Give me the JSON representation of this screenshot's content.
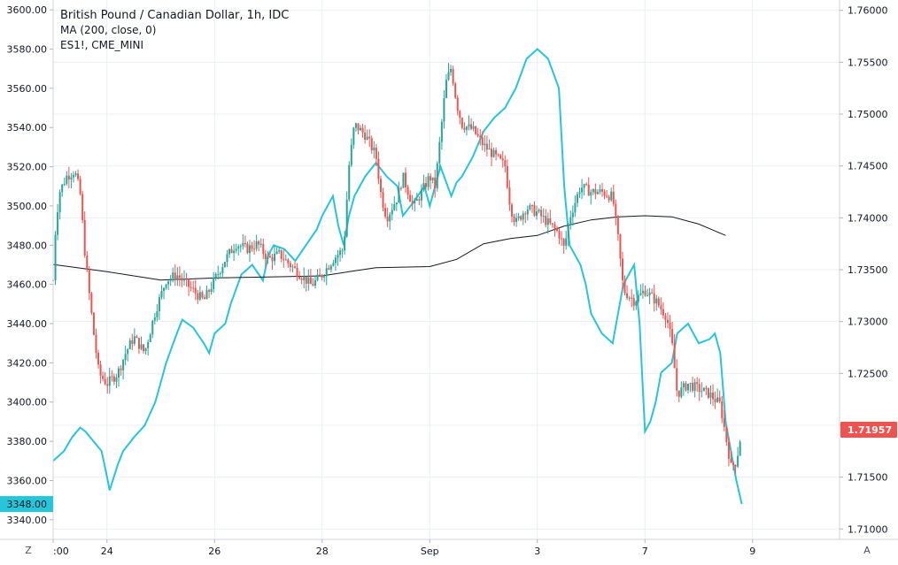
{
  "legend": {
    "title": "British Pound / Canadian Dollar, 1h, IDC",
    "ma": "MA (200, close, 0)",
    "compare": "ES1!, CME_MINI"
  },
  "buttons": {
    "zoom": "Z",
    "auto": "A"
  },
  "colors": {
    "bull": "#26a69a",
    "bear": "#ef5350",
    "compare_line": "#26c6da",
    "ma_line": "#131722",
    "grid": "#eceff3",
    "price_badge": "#ef5350",
    "compare_badge": "#26c6da"
  },
  "chart_data": {
    "type": "candlestick",
    "x_ticks": [
      {
        "label": ":00",
        "day": 0
      },
      {
        "label": "24",
        "day": 1
      },
      {
        "label": "26",
        "day": 3
      },
      {
        "label": "28",
        "day": 5
      },
      {
        "label": "Sep",
        "day": 7
      },
      {
        "label": "3",
        "day": 9
      },
      {
        "label": "7",
        "day": 11
      },
      {
        "label": "9",
        "day": 13
      }
    ],
    "right_axis": {
      "min": 1.709,
      "max": 1.761,
      "ticks": [
        "1.76000",
        "1.75500",
        "1.75000",
        "1.74500",
        "1.74000",
        "1.73500",
        "1.73000",
        "1.72500",
        "1.72000",
        "1.71500",
        "1.71000"
      ],
      "current_value": "1.71957"
    },
    "left_axis": {
      "min": 3330,
      "max": 3605,
      "ticks": [
        "3600.00",
        "3580.00",
        "3560.00",
        "3540.00",
        "3520.00",
        "3500.00",
        "3480.00",
        "3460.00",
        "3440.00",
        "3420.00",
        "3400.00",
        "3380.00",
        "3360.00",
        "3340.00"
      ],
      "current_value": "3348.00"
    },
    "price_path": [
      [
        0.0,
        1.734
      ],
      [
        0.05,
        1.7395
      ],
      [
        0.12,
        1.7425
      ],
      [
        0.25,
        1.744
      ],
      [
        0.4,
        1.7445
      ],
      [
        0.5,
        1.7425
      ],
      [
        0.6,
        1.736
      ],
      [
        0.75,
        1.729
      ],
      [
        0.85,
        1.725
      ],
      [
        1.0,
        1.724
      ],
      [
        1.2,
        1.725
      ],
      [
        1.35,
        1.727
      ],
      [
        1.5,
        1.7285
      ],
      [
        1.7,
        1.727
      ],
      [
        1.9,
        1.731
      ],
      [
        2.1,
        1.734
      ],
      [
        2.3,
        1.7345
      ],
      [
        2.6,
        1.733
      ],
      [
        2.8,
        1.732
      ],
      [
        3.0,
        1.734
      ],
      [
        3.2,
        1.736
      ],
      [
        3.4,
        1.7375
      ],
      [
        3.6,
        1.737
      ],
      [
        3.8,
        1.7375
      ],
      [
        4.0,
        1.736
      ],
      [
        4.2,
        1.7365
      ],
      [
        4.5,
        1.735
      ],
      [
        4.8,
        1.7335
      ],
      [
        5.0,
        1.7345
      ],
      [
        5.2,
        1.736
      ],
      [
        5.4,
        1.737
      ],
      [
        5.5,
        1.745
      ],
      [
        5.6,
        1.749
      ],
      [
        5.8,
        1.748
      ],
      [
        6.0,
        1.746
      ],
      [
        6.1,
        1.742
      ],
      [
        6.2,
        1.74
      ],
      [
        6.4,
        1.742
      ],
      [
        6.5,
        1.744
      ],
      [
        6.7,
        1.741
      ],
      [
        6.9,
        1.743
      ],
      [
        7.0,
        1.744
      ],
      [
        7.1,
        1.743
      ],
      [
        7.2,
        1.748
      ],
      [
        7.3,
        1.753
      ],
      [
        7.4,
        1.7545
      ],
      [
        7.5,
        1.751
      ],
      [
        7.6,
        1.749
      ],
      [
        7.8,
        1.7485
      ],
      [
        8.0,
        1.747
      ],
      [
        8.2,
        1.746
      ],
      [
        8.4,
        1.745
      ],
      [
        8.5,
        1.741
      ],
      [
        8.6,
        1.7395
      ],
      [
        8.8,
        1.741
      ],
      [
        9.0,
        1.7405
      ],
      [
        9.2,
        1.7395
      ],
      [
        9.4,
        1.7385
      ],
      [
        9.5,
        1.737
      ],
      [
        9.6,
        1.74
      ],
      [
        9.8,
        1.743
      ],
      [
        10.0,
        1.7425
      ],
      [
        10.2,
        1.7425
      ],
      [
        10.4,
        1.742
      ],
      [
        10.5,
        1.738
      ],
      [
        10.6,
        1.733
      ],
      [
        10.8,
        1.732
      ],
      [
        11.0,
        1.733
      ],
      [
        11.2,
        1.732
      ],
      [
        11.4,
        1.7305
      ],
      [
        11.5,
        1.728
      ],
      [
        11.6,
        1.723
      ],
      [
        11.8,
        1.724
      ],
      [
        12.0,
        1.7235
      ],
      [
        12.2,
        1.723
      ],
      [
        12.4,
        1.722
      ],
      [
        12.6,
        1.716
      ],
      [
        12.7,
        1.7165
      ],
      [
        12.8,
        1.7196
      ]
    ],
    "ma_line": [
      [
        0.0,
        1.7355
      ],
      [
        1.0,
        1.7348
      ],
      [
        2.0,
        1.734
      ],
      [
        3.0,
        1.7342
      ],
      [
        4.0,
        1.7343
      ],
      [
        5.0,
        1.7344
      ],
      [
        5.5,
        1.7348
      ],
      [
        6.0,
        1.7352
      ],
      [
        7.0,
        1.7353
      ],
      [
        7.5,
        1.736
      ],
      [
        8.0,
        1.7375
      ],
      [
        8.5,
        1.738
      ],
      [
        9.0,
        1.7383
      ],
      [
        9.5,
        1.7392
      ],
      [
        10.0,
        1.7398
      ],
      [
        10.5,
        1.7401
      ],
      [
        11.0,
        1.7402
      ],
      [
        11.5,
        1.7401
      ],
      [
        12.0,
        1.7394
      ],
      [
        12.5,
        1.7383
      ]
    ],
    "compare_series": [
      [
        0.0,
        3370
      ],
      [
        0.2,
        3375
      ],
      [
        0.35,
        3382
      ],
      [
        0.5,
        3387
      ],
      [
        0.6,
        3385
      ],
      [
        0.75,
        3380
      ],
      [
        0.9,
        3375
      ],
      [
        1.0,
        3362
      ],
      [
        1.05,
        3355
      ],
      [
        1.2,
        3368
      ],
      [
        1.3,
        3375
      ],
      [
        1.5,
        3382
      ],
      [
        1.7,
        3388
      ],
      [
        1.9,
        3400
      ],
      [
        2.1,
        3420
      ],
      [
        2.3,
        3435
      ],
      [
        2.4,
        3442
      ],
      [
        2.6,
        3438
      ],
      [
        2.8,
        3430
      ],
      [
        2.9,
        3425
      ],
      [
        3.0,
        3435
      ],
      [
        3.2,
        3440
      ],
      [
        3.3,
        3450
      ],
      [
        3.5,
        3465
      ],
      [
        3.7,
        3470
      ],
      [
        3.9,
        3462
      ],
      [
        4.0,
        3475
      ],
      [
        4.1,
        3480
      ],
      [
        4.3,
        3478
      ],
      [
        4.5,
        3472
      ],
      [
        4.7,
        3480
      ],
      [
        4.9,
        3488
      ],
      [
        5.0,
        3495
      ],
      [
        5.2,
        3505
      ],
      [
        5.3,
        3490
      ],
      [
        5.4,
        3480
      ],
      [
        5.5,
        3495
      ],
      [
        5.6,
        3505
      ],
      [
        5.8,
        3515
      ],
      [
        6.0,
        3522
      ],
      [
        6.2,
        3515
      ],
      [
        6.4,
        3510
      ],
      [
        6.5,
        3495
      ],
      [
        6.7,
        3502
      ],
      [
        6.9,
        3510
      ],
      [
        7.0,
        3500
      ],
      [
        7.2,
        3520
      ],
      [
        7.4,
        3505
      ],
      [
        7.5,
        3512
      ],
      [
        7.6,
        3515
      ],
      [
        7.8,
        3525
      ],
      [
        8.0,
        3538
      ],
      [
        8.2,
        3545
      ],
      [
        8.4,
        3550
      ],
      [
        8.6,
        3560
      ],
      [
        8.8,
        3575
      ],
      [
        9.0,
        3580
      ],
      [
        9.2,
        3575
      ],
      [
        9.4,
        3560
      ],
      [
        9.5,
        3510
      ],
      [
        9.6,
        3480
      ],
      [
        9.8,
        3470
      ],
      [
        9.9,
        3460
      ],
      [
        10.0,
        3445
      ],
      [
        10.2,
        3435
      ],
      [
        10.4,
        3430
      ],
      [
        10.6,
        3460
      ],
      [
        10.8,
        3470
      ],
      [
        10.9,
        3440
      ],
      [
        11.0,
        3385
      ],
      [
        11.1,
        3390
      ],
      [
        11.2,
        3400
      ],
      [
        11.3,
        3415
      ],
      [
        11.5,
        3420
      ],
      [
        11.6,
        3435
      ],
      [
        11.8,
        3440
      ],
      [
        12.0,
        3430
      ],
      [
        12.2,
        3432
      ],
      [
        12.3,
        3435
      ],
      [
        12.4,
        3425
      ],
      [
        12.5,
        3390
      ],
      [
        12.6,
        3375
      ],
      [
        12.7,
        3360
      ],
      [
        12.8,
        3348
      ]
    ]
  }
}
